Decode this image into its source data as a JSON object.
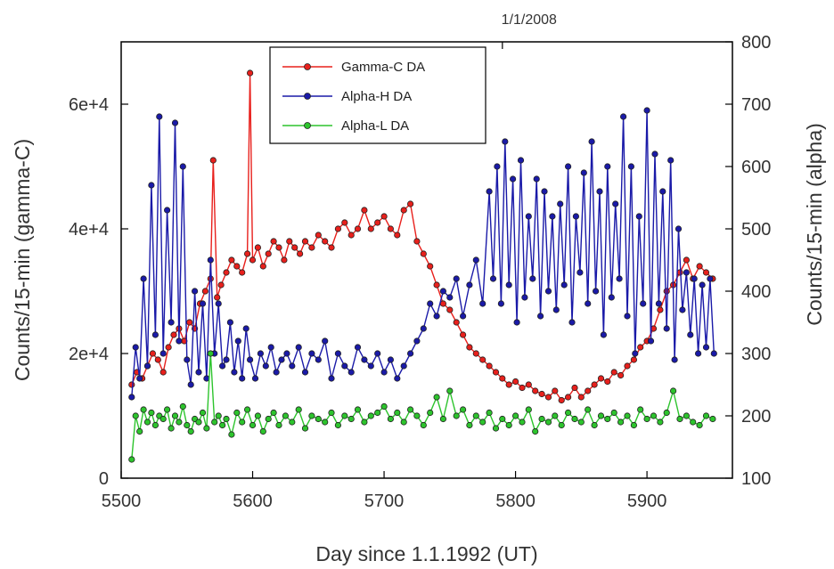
{
  "chart_data": {
    "type": "line",
    "annotation_top": "1/1/2008",
    "xlabel": "Day since 1.1.1992 (UT)",
    "ylabel_left": "Counts/15-min (gamma-C)",
    "ylabel_right": "Counts/15-min (alpha)",
    "xlim": [
      5500,
      5965
    ],
    "ylim_left": [
      0,
      70000
    ],
    "ylim_right": [
      100,
      800
    ],
    "x_ticks": [
      5500,
      5600,
      5700,
      5800,
      5900
    ],
    "x_tick_labels": [
      "5500",
      "5600",
      "5700",
      "5800",
      "5900"
    ],
    "y_left_ticks": [
      0,
      20000,
      40000,
      60000
    ],
    "y_left_tick_labels": [
      "0",
      "2e+4",
      "4e+4",
      "6e+4"
    ],
    "y_right_ticks": [
      100,
      200,
      300,
      400,
      500,
      600,
      700,
      800
    ],
    "y_right_tick_labels": [
      "100",
      "200",
      "300",
      "400",
      "500",
      "600",
      "700",
      "800"
    ],
    "annotation_x": 5790,
    "grid": false,
    "legend_position": "top-left",
    "series": [
      {
        "name": "Gamma-C DA",
        "axis": "left",
        "color": "#e8201c",
        "x": [
          5508,
          5512,
          5516,
          5520,
          5524,
          5528,
          5532,
          5536,
          5540,
          5544,
          5548,
          5552,
          5556,
          5560,
          5564,
          5568,
          5570,
          5573,
          5576,
          5580,
          5584,
          5588,
          5592,
          5596,
          5598,
          5600,
          5604,
          5608,
          5612,
          5616,
          5620,
          5624,
          5628,
          5632,
          5636,
          5640,
          5645,
          5650,
          5655,
          5660,
          5665,
          5670,
          5675,
          5680,
          5685,
          5690,
          5695,
          5700,
          5705,
          5710,
          5715,
          5720,
          5725,
          5730,
          5735,
          5740,
          5745,
          5750,
          5755,
          5760,
          5765,
          5770,
          5775,
          5780,
          5785,
          5790,
          5795,
          5800,
          5805,
          5810,
          5815,
          5820,
          5825,
          5830,
          5835,
          5840,
          5845,
          5850,
          5855,
          5860,
          5865,
          5870,
          5875,
          5880,
          5885,
          5890,
          5895,
          5900,
          5905,
          5910,
          5915,
          5920,
          5925,
          5930,
          5935,
          5940,
          5945,
          5950
        ],
        "values": [
          15000,
          17000,
          16000,
          18000,
          20000,
          19000,
          17000,
          21000,
          23000,
          24000,
          22000,
          25000,
          24000,
          28000,
          30000,
          32000,
          51000,
          29000,
          31000,
          33000,
          35000,
          34000,
          33000,
          36000,
          65000,
          35000,
          37000,
          34000,
          36000,
          38000,
          37000,
          35000,
          38000,
          37000,
          36000,
          38000,
          37000,
          39000,
          38000,
          37000,
          40000,
          41000,
          39000,
          40000,
          43000,
          40000,
          41000,
          42000,
          40000,
          39000,
          43000,
          44000,
          38000,
          36000,
          34000,
          31000,
          28000,
          27000,
          25000,
          23000,
          21000,
          20000,
          19000,
          18000,
          17000,
          16000,
          15000,
          15500,
          14500,
          15000,
          14000,
          13500,
          13000,
          14000,
          12500,
          13000,
          14500,
          13000,
          14000,
          15000,
          16000,
          15500,
          17000,
          16500,
          18000,
          19000,
          21000,
          22000,
          24000,
          27000,
          30000,
          31000,
          33000,
          35000,
          32000,
          34000,
          33000,
          32000
        ]
      },
      {
        "name": "Alpha-H DA",
        "axis": "right",
        "color": "#1a1aa8",
        "x": [
          5508,
          5511,
          5514,
          5517,
          5520,
          5523,
          5526,
          5529,
          5532,
          5535,
          5538,
          5541,
          5544,
          5547,
          5550,
          5553,
          5556,
          5559,
          5562,
          5565,
          5568,
          5571,
          5574,
          5577,
          5580,
          5583,
          5586,
          5589,
          5592,
          5595,
          5598,
          5602,
          5606,
          5610,
          5614,
          5618,
          5622,
          5626,
          5630,
          5635,
          5640,
          5645,
          5650,
          5655,
          5660,
          5665,
          5670,
          5675,
          5680,
          5685,
          5690,
          5695,
          5700,
          5705,
          5710,
          5715,
          5720,
          5725,
          5730,
          5735,
          5740,
          5745,
          5750,
          5755,
          5760,
          5765,
          5770,
          5775,
          5780,
          5783,
          5786,
          5789,
          5792,
          5795,
          5798,
          5801,
          5804,
          5807,
          5810,
          5813,
          5816,
          5819,
          5822,
          5825,
          5828,
          5831,
          5834,
          5837,
          5840,
          5843,
          5846,
          5849,
          5852,
          5855,
          5858,
          5861,
          5864,
          5867,
          5870,
          5873,
          5876,
          5879,
          5882,
          5885,
          5888,
          5891,
          5894,
          5897,
          5900,
          5903,
          5906,
          5909,
          5912,
          5915,
          5918,
          5921,
          5924,
          5927,
          5930,
          5933,
          5936,
          5939,
          5942,
          5945,
          5948,
          5951
        ],
        "values": [
          230,
          310,
          260,
          420,
          280,
          570,
          330,
          680,
          300,
          530,
          350,
          670,
          320,
          600,
          290,
          250,
          400,
          270,
          380,
          260,
          450,
          300,
          380,
          280,
          290,
          350,
          270,
          320,
          260,
          340,
          290,
          260,
          300,
          280,
          310,
          270,
          290,
          300,
          280,
          310,
          270,
          300,
          290,
          320,
          260,
          300,
          280,
          270,
          310,
          290,
          280,
          300,
          270,
          290,
          260,
          280,
          300,
          320,
          340,
          380,
          360,
          400,
          390,
          420,
          360,
          410,
          450,
          380,
          560,
          420,
          600,
          380,
          640,
          410,
          580,
          350,
          610,
          390,
          520,
          420,
          580,
          360,
          560,
          400,
          520,
          370,
          540,
          410,
          600,
          350,
          520,
          430,
          590,
          380,
          640,
          400,
          560,
          330,
          600,
          390,
          540,
          420,
          680,
          360,
          600,
          300,
          520,
          380,
          690,
          320,
          620,
          380,
          560,
          340,
          610,
          290,
          500,
          370,
          430,
          330,
          420,
          300,
          410,
          310,
          420,
          300
        ]
      },
      {
        "name": "Alpha-L DA",
        "axis": "right",
        "color": "#2dc42d",
        "x": [
          5508,
          5511,
          5514,
          5517,
          5520,
          5523,
          5526,
          5529,
          5532,
          5535,
          5538,
          5541,
          5544,
          5547,
          5550,
          5553,
          5556,
          5559,
          5562,
          5565,
          5568,
          5571,
          5574,
          5577,
          5580,
          5584,
          5588,
          5592,
          5596,
          5600,
          5604,
          5608,
          5612,
          5616,
          5620,
          5625,
          5630,
          5635,
          5640,
          5645,
          5650,
          5655,
          5660,
          5665,
          5670,
          5675,
          5680,
          5685,
          5690,
          5695,
          5700,
          5705,
          5710,
          5715,
          5720,
          5725,
          5730,
          5735,
          5740,
          5745,
          5750,
          5755,
          5760,
          5765,
          5770,
          5775,
          5780,
          5785,
          5790,
          5795,
          5800,
          5805,
          5810,
          5815,
          5820,
          5825,
          5830,
          5835,
          5840,
          5845,
          5850,
          5855,
          5860,
          5865,
          5870,
          5875,
          5880,
          5885,
          5890,
          5895,
          5900,
          5905,
          5910,
          5915,
          5920,
          5925,
          5930,
          5935,
          5940,
          5945,
          5950
        ],
        "values": [
          130,
          200,
          175,
          210,
          190,
          205,
          185,
          200,
          195,
          210,
          180,
          200,
          190,
          215,
          185,
          175,
          195,
          190,
          205,
          180,
          300,
          190,
          200,
          185,
          195,
          170,
          205,
          190,
          210,
          185,
          200,
          175,
          195,
          205,
          185,
          200,
          190,
          210,
          180,
          200,
          195,
          190,
          205,
          185,
          200,
          195,
          210,
          190,
          200,
          205,
          215,
          195,
          205,
          190,
          210,
          200,
          185,
          205,
          230,
          195,
          240,
          200,
          210,
          185,
          200,
          190,
          205,
          180,
          195,
          185,
          200,
          190,
          210,
          175,
          195,
          190,
          200,
          185,
          205,
          195,
          190,
          210,
          185,
          200,
          195,
          205,
          190,
          200,
          185,
          210,
          195,
          200,
          190,
          205,
          240,
          195,
          200,
          190,
          185,
          200,
          195
        ]
      }
    ]
  }
}
